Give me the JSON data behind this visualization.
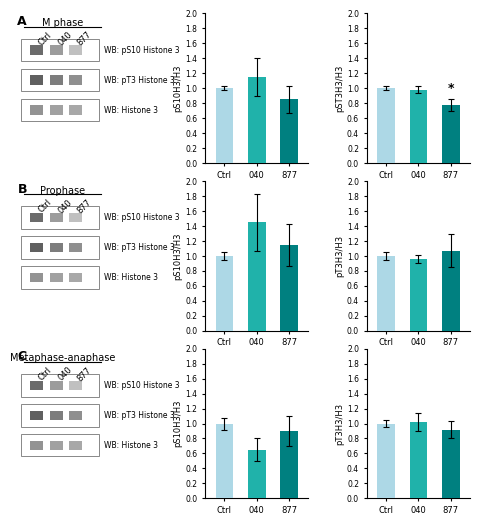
{
  "panels": [
    {
      "label": "A",
      "title": "M phase",
      "wb_labels": [
        "WB: pS10 Histone 3",
        "WB: pT3 Histone 3",
        "WB: Histone 3"
      ],
      "lane_labels": [
        "Ctrl",
        "040",
        "877"
      ],
      "graph1": {
        "ylabel": "pS10H3/H3",
        "categories": [
          "Ctrl",
          "040",
          "877"
        ],
        "values": [
          1.0,
          1.15,
          0.85
        ],
        "errors": [
          0.03,
          0.25,
          0.18
        ],
        "colors": [
          "#add8e6",
          "#20b2aa",
          "#008080"
        ],
        "ylim": [
          0,
          2.0
        ],
        "yticks": [
          0.0,
          0.2,
          0.4,
          0.6,
          0.8,
          1.0,
          1.2,
          1.4,
          1.6,
          1.8,
          2.0
        ],
        "star": null
      },
      "graph2": {
        "ylabel": "pST3H3/H3",
        "categories": [
          "Ctrl",
          "040",
          "877"
        ],
        "values": [
          1.0,
          0.98,
          0.78
        ],
        "errors": [
          0.03,
          0.05,
          0.08
        ],
        "colors": [
          "#add8e6",
          "#20b2aa",
          "#008080"
        ],
        "ylim": [
          0,
          2.0
        ],
        "yticks": [
          0.0,
          0.2,
          0.4,
          0.6,
          0.8,
          1.0,
          1.2,
          1.4,
          1.6,
          1.8,
          2.0
        ],
        "star": "877"
      }
    },
    {
      "label": "B",
      "title": "Prophase",
      "wb_labels": [
        "WB: pS10 Histone 3",
        "WB: pT3 Histone 3",
        "WB: Histone 3"
      ],
      "lane_labels": [
        "Ctrl",
        "040",
        "877"
      ],
      "graph1": {
        "ylabel": "pS10H3/H3",
        "categories": [
          "Ctrl",
          "040",
          "877"
        ],
        "values": [
          1.0,
          1.45,
          1.15
        ],
        "errors": [
          0.05,
          0.38,
          0.28
        ],
        "colors": [
          "#add8e6",
          "#20b2aa",
          "#008080"
        ],
        "ylim": [
          0,
          2.0
        ],
        "yticks": [
          0.0,
          0.2,
          0.4,
          0.6,
          0.8,
          1.0,
          1.2,
          1.4,
          1.6,
          1.8,
          2.0
        ],
        "star": null
      },
      "graph2": {
        "ylabel": "pT3H3/H3",
        "categories": [
          "Ctrl",
          "040",
          "877"
        ],
        "values": [
          1.0,
          0.96,
          1.07
        ],
        "errors": [
          0.05,
          0.05,
          0.22
        ],
        "colors": [
          "#add8e6",
          "#20b2aa",
          "#008080"
        ],
        "ylim": [
          0,
          2.0
        ],
        "yticks": [
          0.0,
          0.2,
          0.4,
          0.6,
          0.8,
          1.0,
          1.2,
          1.4,
          1.6,
          1.8,
          2.0
        ],
        "star": null
      }
    },
    {
      "label": "C",
      "title": "Metaphase-anaphase",
      "wb_labels": [
        "WB: pS10 Histone 3",
        "WB: pT3 Histone 3",
        "WB: Histone 3"
      ],
      "lane_labels": [
        "Ctrl",
        "040",
        "877"
      ],
      "graph1": {
        "ylabel": "pS10H3/H3",
        "categories": [
          "Ctrl",
          "040",
          "877"
        ],
        "values": [
          1.0,
          0.65,
          0.9
        ],
        "errors": [
          0.08,
          0.15,
          0.2
        ],
        "colors": [
          "#add8e6",
          "#20b2aa",
          "#008080"
        ],
        "ylim": [
          0,
          2.0
        ],
        "yticks": [
          0.0,
          0.2,
          0.4,
          0.6,
          0.8,
          1.0,
          1.2,
          1.4,
          1.6,
          1.8,
          2.0
        ],
        "star": null
      },
      "graph2": {
        "ylabel": "pT3H3/H3",
        "categories": [
          "Ctrl",
          "040",
          "877"
        ],
        "values": [
          1.0,
          1.02,
          0.92
        ],
        "errors": [
          0.05,
          0.12,
          0.12
        ],
        "colors": [
          "#add8e6",
          "#20b2aa",
          "#008080"
        ],
        "ylim": [
          0,
          2.0
        ],
        "yticks": [
          0.0,
          0.2,
          0.4,
          0.6,
          0.8,
          1.0,
          1.2,
          1.4,
          1.6,
          1.8,
          2.0
        ],
        "star": null
      }
    }
  ],
  "background_color": "#ffffff",
  "font_size": 6,
  "bar_width": 0.55
}
